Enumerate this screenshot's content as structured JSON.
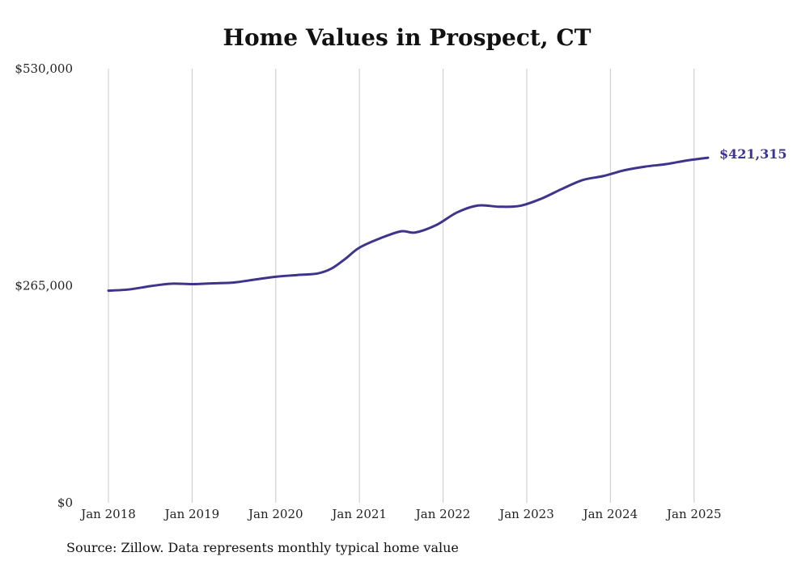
{
  "chart_data": {
    "type": "line",
    "title": "Home Values in Prospect, CT",
    "xlabel": "",
    "ylabel": "",
    "x_tick_labels": [
      "Jan 2018",
      "Jan 2019",
      "Jan 2020",
      "Jan 2021",
      "Jan 2022",
      "Jan 2023",
      "Jan 2024",
      "Jan 2025"
    ],
    "y_tick_labels": [
      "$0",
      "$265,000",
      "$530,000"
    ],
    "ylim": [
      0,
      530000
    ],
    "xlim": [
      "2018-01",
      "2025-03"
    ],
    "grid": "vertical",
    "legend": "none",
    "series": [
      {
        "line_color": "#3d3589",
        "end_label": "$421,315",
        "x": [
          "2018-01",
          "2018-04",
          "2018-07",
          "2018-10",
          "2019-01",
          "2019-04",
          "2019-07",
          "2019-10",
          "2020-01",
          "2020-04",
          "2020-07",
          "2020-09",
          "2020-11",
          "2021-01",
          "2021-04",
          "2021-07",
          "2021-09",
          "2021-12",
          "2022-03",
          "2022-06",
          "2022-09",
          "2022-12",
          "2023-03",
          "2023-06",
          "2023-09",
          "2023-12",
          "2024-03",
          "2024-06",
          "2024-09",
          "2024-12",
          "2025-03"
        ],
        "values": [
          259000,
          260500,
          264500,
          267500,
          267000,
          268000,
          269000,
          272500,
          276000,
          278000,
          280000,
          286000,
          298000,
          311500,
          323000,
          331500,
          330000,
          339000,
          354500,
          363000,
          361500,
          362500,
          371000,
          383000,
          394000,
          399000,
          406000,
          410500,
          413500,
          418000,
          421315
        ]
      }
    ]
  },
  "source_note": "Source: Zillow. Data represents monthly typical home value"
}
